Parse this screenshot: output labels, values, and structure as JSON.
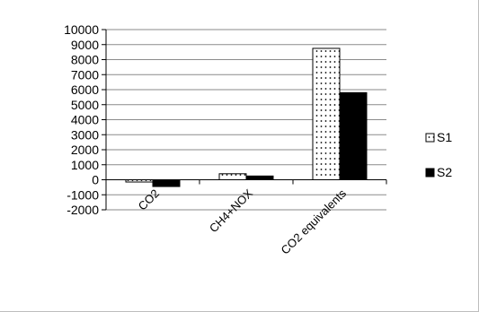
{
  "chart_data": {
    "type": "bar",
    "categories": [
      "CO2",
      "CH4+NOX",
      "CO2 equivalents"
    ],
    "series": [
      {
        "name": "S1",
        "values": [
          -150,
          400,
          8750
        ],
        "color": "#ffffff",
        "pattern": "dotted"
      },
      {
        "name": "S2",
        "values": [
          -450,
          250,
          5800
        ],
        "color": "#000000",
        "pattern": "solid"
      }
    ],
    "ylim": [
      -2000,
      10000
    ],
    "y_ticks": [
      -2000,
      -1000,
      0,
      1000,
      2000,
      3000,
      4000,
      5000,
      6000,
      7000,
      8000,
      9000,
      10000
    ],
    "title": "",
    "xlabel": "",
    "ylabel": "",
    "grid": true,
    "legend_position": "right"
  }
}
